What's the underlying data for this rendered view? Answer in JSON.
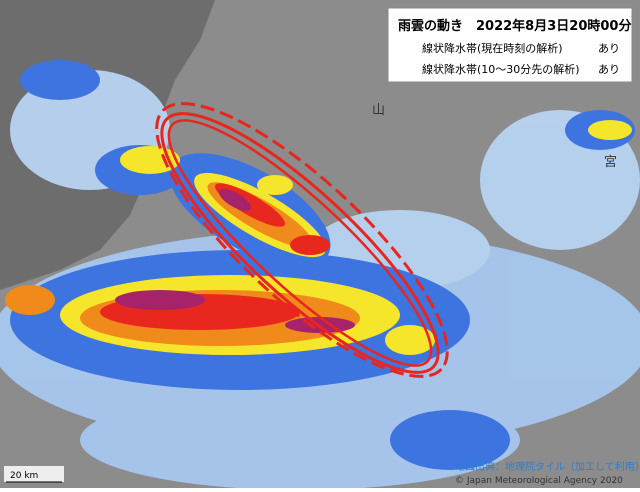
{
  "header": {
    "title": "雨雲の動き　2022年8月3日20時00分"
  },
  "legend": {
    "rows": [
      {
        "label": "線状降水帯(現在時刻の解析)",
        "value": "あり"
      },
      {
        "label": "線状降水帯(10～30分先の解析)",
        "value": "あり"
      }
    ]
  },
  "map": {
    "labels": [
      "山",
      "宮"
    ],
    "scale": "20 km"
  },
  "footer": {
    "source": "地図出典：地理院タイル（加工して利用）",
    "copyright": "© Japan Meteorological Agency 2020"
  }
}
